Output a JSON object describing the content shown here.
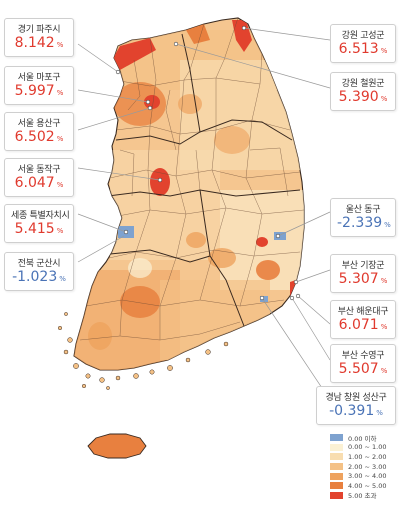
{
  "legend": {
    "items": [
      {
        "label": "0.00 이하",
        "color": "#7ea2cf"
      },
      {
        "label": "0.00 ~ 1.00",
        "color": "#fbf1d4"
      },
      {
        "label": "1.00 ~ 2.00",
        "color": "#f8ddb0"
      },
      {
        "label": "2.00 ~ 3.00",
        "color": "#f4c186"
      },
      {
        "label": "3.00 ~ 4.00",
        "color": "#eea25e"
      },
      {
        "label": "4.00 ~ 5.00",
        "color": "#e8803f"
      },
      {
        "label": "5.00 초과",
        "color": "#e2432e"
      }
    ]
  },
  "regions": [
    {
      "name": "경기 파주시",
      "value": "8.142",
      "unit": "%",
      "sign": "pos"
    },
    {
      "name": "서울 마포구",
      "value": "5.997",
      "unit": "%",
      "sign": "pos"
    },
    {
      "name": "서울 용산구",
      "value": "6.502",
      "unit": "%",
      "sign": "pos"
    },
    {
      "name": "서울 동작구",
      "value": "6.047",
      "unit": "%",
      "sign": "pos"
    },
    {
      "name": "세종 특별자치시",
      "value": "5.415",
      "unit": "%",
      "sign": "pos"
    },
    {
      "name": "전북 군산시",
      "value": "-1.023",
      "unit": "%",
      "sign": "neg"
    },
    {
      "name": "강원 고성군",
      "value": "6.513",
      "unit": "%",
      "sign": "pos"
    },
    {
      "name": "강원 철원군",
      "value": "5.390",
      "unit": "%",
      "sign": "pos"
    },
    {
      "name": "울산 동구",
      "value": "-2.339",
      "unit": "%",
      "sign": "neg"
    },
    {
      "name": "부산 기장군",
      "value": "5.307",
      "unit": "%",
      "sign": "pos"
    },
    {
      "name": "부산 해운대구",
      "value": "6.071",
      "unit": "%",
      "sign": "pos"
    },
    {
      "name": "부산 수영구",
      "value": "5.507",
      "unit": "%",
      "sign": "pos"
    },
    {
      "name": "경남 창원 성산구",
      "value": "-0.391",
      "unit": "%",
      "sign": "neg"
    }
  ]
}
